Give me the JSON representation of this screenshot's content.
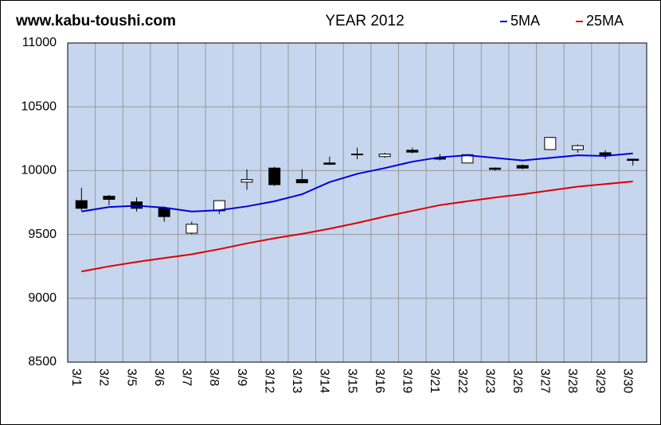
{
  "chart_data": {
    "type": "candlestick",
    "site": "www.kabu-toushi.com",
    "title": "YEAR 2012",
    "categories": [
      "3/1",
      "3/2",
      "3/5",
      "3/6",
      "3/7",
      "3/8",
      "3/9",
      "3/12",
      "3/13",
      "3/14",
      "3/15",
      "3/16",
      "3/19",
      "3/21",
      "3/22",
      "3/23",
      "3/26",
      "3/27",
      "3/28",
      "3/29",
      "3/30"
    ],
    "open": [
      9765,
      9800,
      9755,
      9705,
      9510,
      9685,
      9910,
      10020,
      9930,
      10060,
      10125,
      10110,
      10160,
      10100,
      10060,
      10020,
      10040,
      10165,
      10165,
      10140,
      10090
    ],
    "high": [
      9865,
      9810,
      9790,
      9720,
      9600,
      9765,
      10010,
      10030,
      10010,
      10110,
      10180,
      10140,
      10180,
      10130,
      10130,
      10025,
      10050,
      10260,
      10205,
      10160,
      10090
    ],
    "low": [
      9685,
      9730,
      9680,
      9600,
      9500,
      9660,
      9850,
      9880,
      9900,
      10045,
      10090,
      10100,
      10135,
      10080,
      10060,
      10000,
      10010,
      10165,
      10140,
      10090,
      10040
    ],
    "close": [
      9705,
      9775,
      9705,
      9640,
      9580,
      9765,
      9930,
      9890,
      9905,
      10050,
      10130,
      10130,
      10145,
      10090,
      10125,
      10010,
      10020,
      10260,
      10195,
      10120,
      10080
    ],
    "up_color": "#ffffff",
    "down_color": "#000000",
    "series": [
      {
        "name": "5MA",
        "color": "#0000dd",
        "values": [
          9680,
          9715,
          9725,
          9710,
          9680,
          9690,
          9720,
          9760,
          9815,
          9910,
          9975,
          10020,
          10070,
          10105,
          10120,
          10100,
          10080,
          10100,
          10120,
          10115,
          10135
        ]
      },
      {
        "name": "25MA",
        "color": "#dd0000",
        "values": [
          9210,
          9250,
          9285,
          9315,
          9345,
          9385,
          9430,
          9470,
          9505,
          9545,
          9590,
          9640,
          9685,
          9730,
          9760,
          9790,
          9815,
          9845,
          9875,
          9895,
          9915
        ]
      }
    ],
    "ylim": [
      8500,
      11000
    ],
    "yticks": [
      8500,
      9000,
      9500,
      10000,
      10500,
      11000
    ],
    "grid": true
  }
}
